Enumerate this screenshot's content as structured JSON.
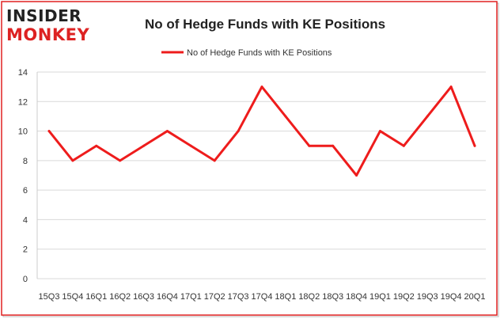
{
  "branding": {
    "logo_top": "INSIDER",
    "logo_bottom": "MONKEY"
  },
  "colors": {
    "series": "#ee1c1c",
    "border": "#e02020",
    "grid": "#d9d9d9",
    "logo_dark": "#222222",
    "logo_red": "#dd2222"
  },
  "chart_data": {
    "type": "line",
    "title": "No of Hedge Funds with KE Positions",
    "xlabel": "",
    "ylabel": "",
    "ylim": [
      0,
      14
    ],
    "yticks": [
      0,
      2,
      4,
      6,
      8,
      10,
      12,
      14
    ],
    "grid": true,
    "legend_position": "top-center",
    "categories": [
      "15Q3",
      "15Q4",
      "16Q1",
      "16Q2",
      "16Q3",
      "16Q4",
      "17Q1",
      "17Q2",
      "17Q3",
      "17Q4",
      "18Q1",
      "18Q2",
      "18Q3",
      "18Q4",
      "19Q1",
      "19Q2",
      "19Q3",
      "19Q4",
      "20Q1"
    ],
    "series": [
      {
        "name": "No of Hedge Funds with KE Positions",
        "values": [
          10,
          8,
          9,
          8,
          9,
          10,
          9,
          8,
          10,
          13,
          11,
          9,
          9,
          7,
          10,
          9,
          11,
          13,
          9
        ]
      }
    ]
  }
}
